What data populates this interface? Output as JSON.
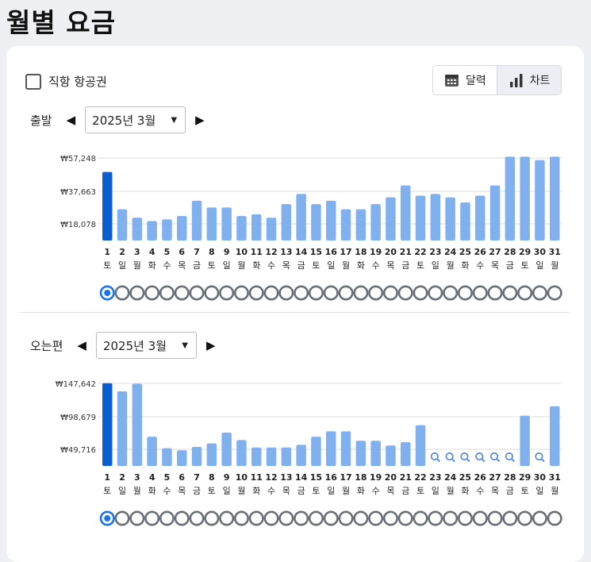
{
  "page": {
    "title": "월별 요금"
  },
  "options": {
    "direct_flights_label": "직항 항공권",
    "direct_flights_checked": false
  },
  "view_toggle": {
    "calendar_label": "달력",
    "chart_label": "차트",
    "active": "chart"
  },
  "colors": {
    "selected_bar": "#0a5ed0",
    "bar": "#80b1ee",
    "grid": "#dcdcdc",
    "radio_ring": "#6a7077",
    "radio_selected": "#1a73e8"
  },
  "days": [
    "1",
    "2",
    "3",
    "4",
    "5",
    "6",
    "7",
    "8",
    "9",
    "10",
    "11",
    "12",
    "13",
    "14",
    "15",
    "16",
    "17",
    "18",
    "19",
    "20",
    "21",
    "22",
    "23",
    "24",
    "25",
    "26",
    "27",
    "28",
    "29",
    "30",
    "31"
  ],
  "weekdays": [
    "토",
    "일",
    "월",
    "화",
    "수",
    "목",
    "금",
    "토",
    "일",
    "월",
    "화",
    "수",
    "목",
    "금",
    "토",
    "일",
    "월",
    "화",
    "수",
    "목",
    "금",
    "토",
    "일",
    "월",
    "화",
    "수",
    "목",
    "금",
    "토",
    "일",
    "월"
  ],
  "outbound": {
    "label": "출발",
    "month_label": "2025년 3월",
    "chart_data": {
      "type": "bar",
      "categories": [
        "1",
        "2",
        "3",
        "4",
        "5",
        "6",
        "7",
        "8",
        "9",
        "10",
        "11",
        "12",
        "13",
        "14",
        "15",
        "16",
        "17",
        "18",
        "19",
        "20",
        "21",
        "22",
        "23",
        "24",
        "25",
        "26",
        "27",
        "28",
        "29",
        "30",
        "31"
      ],
      "values": [
        49000,
        27000,
        22000,
        20000,
        21000,
        23000,
        32000,
        28000,
        28000,
        23000,
        24000,
        22000,
        30000,
        36000,
        30000,
        32000,
        27000,
        27000,
        30000,
        34000,
        41000,
        35000,
        36000,
        34000,
        31000,
        35000,
        41000,
        58000,
        58000,
        56000,
        58000
      ],
      "missing_days": [],
      "ytick_labels": [
        "₩57,248",
        "₩37,663",
        "₩18,078"
      ],
      "ytick_values": [
        57248,
        37663,
        18078
      ],
      "selected_index": 0
    }
  },
  "return": {
    "label": "오는편",
    "month_label": "2025년 3월",
    "chart_data": {
      "type": "bar",
      "categories": [
        "1",
        "2",
        "3",
        "4",
        "5",
        "6",
        "7",
        "8",
        "9",
        "10",
        "11",
        "12",
        "13",
        "14",
        "15",
        "16",
        "17",
        "18",
        "19",
        "20",
        "21",
        "22",
        "23",
        "24",
        "25",
        "26",
        "27",
        "28",
        "29",
        "30",
        "31"
      ],
      "values": [
        148000,
        136000,
        147000,
        69000,
        52000,
        49000,
        54000,
        59000,
        75000,
        64000,
        53000,
        53000,
        53000,
        57000,
        69000,
        77000,
        77000,
        63000,
        63000,
        56000,
        61000,
        86000,
        null,
        null,
        null,
        null,
        null,
        null,
        100000,
        null,
        114000
      ],
      "missing_days": [
        "23",
        "24",
        "25",
        "26",
        "27",
        "28",
        "30"
      ],
      "ytick_labels": [
        "₩147,642",
        "₩98,679",
        "₩49,716"
      ],
      "ytick_values": [
        147642,
        98679,
        49716
      ],
      "selected_index": 0
    }
  }
}
